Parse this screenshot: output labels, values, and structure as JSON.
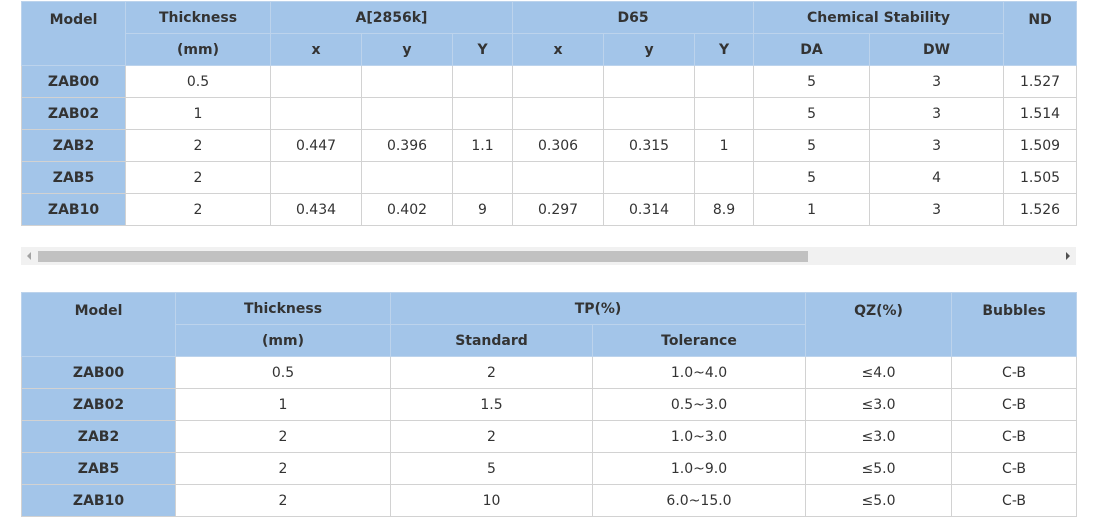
{
  "colors": {
    "header_bg": "#a3c5e9",
    "cell_bg": "#ffffff",
    "grid": "#d2d2d2",
    "scroll_track": "#f1f1f1",
    "scroll_thumb": "#c1c1c1"
  },
  "table1": {
    "h_model": "Model",
    "h_thickness": "Thickness",
    "h_thickness_unit": "(mm)",
    "h_a2856k": "A[2856k]",
    "h_d65": "D65",
    "h_chem": "Chemical Stability",
    "h_nd": "ND",
    "sub": [
      "x",
      "y",
      "Y",
      "x",
      "y",
      "Y",
      "DA",
      "DW"
    ],
    "rows": [
      {
        "model": "ZAB00",
        "thickness": "0.5",
        "a_x": "",
        "a_y": "",
        "a_Y": "",
        "d_x": "",
        "d_y": "",
        "d_Y": "",
        "da": "5",
        "dw": "3",
        "nd": "1.527"
      },
      {
        "model": "ZAB02",
        "thickness": "1",
        "a_x": "",
        "a_y": "",
        "a_Y": "",
        "d_x": "",
        "d_y": "",
        "d_Y": "",
        "da": "5",
        "dw": "3",
        "nd": "1.514"
      },
      {
        "model": "ZAB2",
        "thickness": "2",
        "a_x": "0.447",
        "a_y": "0.396",
        "a_Y": "1.1",
        "d_x": "0.306",
        "d_y": "0.315",
        "d_Y": "1",
        "da": "5",
        "dw": "3",
        "nd": "1.509"
      },
      {
        "model": "ZAB5",
        "thickness": "2",
        "a_x": "",
        "a_y": "",
        "a_Y": "",
        "d_x": "",
        "d_y": "",
        "d_Y": "",
        "da": "5",
        "dw": "4",
        "nd": "1.505"
      },
      {
        "model": "ZAB10",
        "thickness": "2",
        "a_x": "0.434",
        "a_y": "0.402",
        "a_Y": "9",
        "d_x": "0.297",
        "d_y": "0.314",
        "d_Y": "8.9",
        "da": "1",
        "dw": "3",
        "nd": "1.526"
      }
    ]
  },
  "scrollbar": {
    "left_icon": "arrow-left-icon",
    "right_icon": "arrow-right-icon"
  },
  "table2": {
    "h_model": "Model",
    "h_thickness": "Thickness",
    "h_thickness_unit": "(mm)",
    "h_tp": "TP(%)",
    "h_standard": "Standard",
    "h_tolerance": "Tolerance",
    "h_qz": "QZ(%)",
    "h_bubbles": "Bubbles",
    "rows": [
      {
        "model": "ZAB00",
        "thickness": "0.5",
        "standard": "2",
        "tolerance": "1.0~4.0",
        "qz": "≤4.0",
        "bubbles": "C-B"
      },
      {
        "model": "ZAB02",
        "thickness": "1",
        "standard": "1.5",
        "tolerance": "0.5~3.0",
        "qz": "≤3.0",
        "bubbles": "C-B"
      },
      {
        "model": "ZAB2",
        "thickness": "2",
        "standard": "2",
        "tolerance": "1.0~3.0",
        "qz": "≤3.0",
        "bubbles": "C-B"
      },
      {
        "model": "ZAB5",
        "thickness": "2",
        "standard": "5",
        "tolerance": "1.0~9.0",
        "qz": "≤5.0",
        "bubbles": "C-B"
      },
      {
        "model": "ZAB10",
        "thickness": "2",
        "standard": "10",
        "tolerance": "6.0~15.0",
        "qz": "≤5.0",
        "bubbles": "C-B"
      }
    ]
  }
}
